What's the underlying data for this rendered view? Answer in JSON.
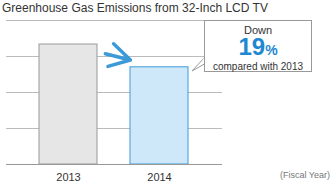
{
  "chart_data": {
    "type": "bar",
    "title": "Greenhouse Gas Emissions from 32-Inch LCD TV",
    "categories": [
      "2013",
      "2014"
    ],
    "values": [
      100,
      81
    ],
    "colors": [
      "#e6e6e6",
      "#cfe8f9"
    ],
    "ylim": [
      0,
      120
    ],
    "yticks": [
      0,
      30,
      60,
      90,
      120
    ],
    "grid": true,
    "tick_labels": "x",
    "x_label": "(Fiscal Year)",
    "annotation": {
      "prefix": "Down",
      "value": 19,
      "value_label": "19%",
      "suffix": "compared with 2013"
    }
  }
}
